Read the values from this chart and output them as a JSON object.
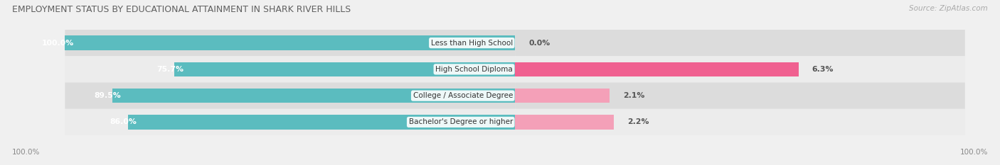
{
  "title": "EMPLOYMENT STATUS BY EDUCATIONAL ATTAINMENT IN SHARK RIVER HILLS",
  "source": "Source: ZipAtlas.com",
  "categories": [
    "Less than High School",
    "High School Diploma",
    "College / Associate Degree",
    "Bachelor's Degree or higher"
  ],
  "in_labor_force": [
    100.0,
    75.7,
    89.5,
    86.0
  ],
  "unemployed": [
    0.0,
    6.3,
    2.1,
    2.2
  ],
  "labor_force_color": "#5BBCBF",
  "unemployed_color_bright": "#F06090",
  "unemployed_color_light": "#F4A0B8",
  "row_bg_dark": "#DCDCDC",
  "row_bg_light": "#ECECEC",
  "title_fontsize": 9.0,
  "label_fontsize": 7.8,
  "tick_fontsize": 7.5,
  "source_fontsize": 7.5,
  "x_label": "100.0%",
  "max_value": 100.0,
  "fig_width": 14.06,
  "fig_height": 2.33
}
